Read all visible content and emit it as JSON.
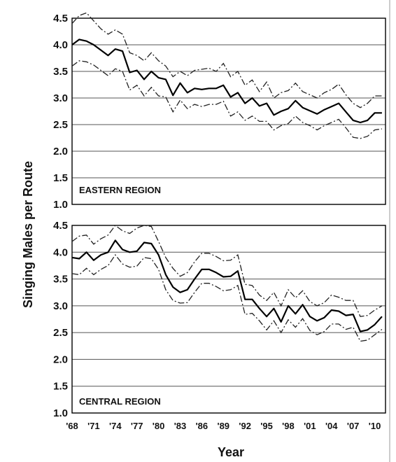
{
  "chart_data": [
    {
      "type": "line",
      "panel_label": "EASTERN REGION",
      "ylim": [
        1.0,
        4.5
      ],
      "yticks": [
        "1.0",
        "1.5",
        "2.0",
        "2.5",
        "3.0",
        "3.5",
        "4.0",
        "4.5"
      ],
      "xlim": [
        1968,
        2011.5
      ],
      "grid": true,
      "x": [
        1968,
        1969,
        1970,
        1971,
        1972,
        1973,
        1974,
        1975,
        1976,
        1977,
        1978,
        1979,
        1980,
        1981,
        1982,
        1983,
        1984,
        1985,
        1986,
        1987,
        1988,
        1989,
        1990,
        1991,
        1992,
        1993,
        1994,
        1995,
        1996,
        1997,
        1998,
        1999,
        2000,
        2001,
        2002,
        2003,
        2004,
        2005,
        2006,
        2007,
        2008,
        2009,
        2010,
        2011
      ],
      "series": [
        {
          "values": [
            4.0,
            4.1,
            4.07,
            4.0,
            3.9,
            3.8,
            3.92,
            3.88,
            3.48,
            3.52,
            3.35,
            3.5,
            3.38,
            3.35,
            3.05,
            3.28,
            3.1,
            3.18,
            3.16,
            3.18,
            3.18,
            3.24,
            3.02,
            3.1,
            2.9,
            3.0,
            2.85,
            2.9,
            2.68,
            2.75,
            2.8,
            2.95,
            2.82,
            2.76,
            2.7,
            2.78,
            2.84,
            2.9,
            2.74,
            2.58,
            2.54,
            2.58,
            2.72,
            2.72
          ]
        },
        {
          "values": [
            4.4,
            4.55,
            4.6,
            4.45,
            4.3,
            4.2,
            4.28,
            4.2,
            3.85,
            3.8,
            3.7,
            3.85,
            3.7,
            3.6,
            3.4,
            3.5,
            3.42,
            3.52,
            3.54,
            3.56,
            3.5,
            3.65,
            3.4,
            3.5,
            3.24,
            3.34,
            3.12,
            3.3,
            3.0,
            3.1,
            3.14,
            3.28,
            3.12,
            3.06,
            3.0,
            3.1,
            3.16,
            3.26,
            3.06,
            2.9,
            2.82,
            2.9,
            3.04,
            3.04
          ]
        },
        {
          "values": [
            3.6,
            3.7,
            3.68,
            3.62,
            3.52,
            3.42,
            3.55,
            3.5,
            3.15,
            3.24,
            3.04,
            3.2,
            3.04,
            3.02,
            2.74,
            2.96,
            2.8,
            2.88,
            2.84,
            2.88,
            2.88,
            2.94,
            2.66,
            2.74,
            2.58,
            2.66,
            2.56,
            2.56,
            2.4,
            2.48,
            2.52,
            2.66,
            2.54,
            2.48,
            2.4,
            2.48,
            2.54,
            2.6,
            2.44,
            2.26,
            2.24,
            2.28,
            2.4,
            2.42
          ]
        }
      ]
    },
    {
      "type": "line",
      "panel_label": "CENTRAL REGION",
      "ylim": [
        1.0,
        4.5
      ],
      "yticks": [
        "1.0",
        "1.5",
        "2.0",
        "2.5",
        "3.0",
        "3.5",
        "4.0",
        "4.5"
      ],
      "xlim": [
        1968,
        2011.5
      ],
      "grid": true,
      "x": [
        1968,
        1969,
        1970,
        1971,
        1972,
        1973,
        1974,
        1975,
        1976,
        1977,
        1978,
        1979,
        1980,
        1981,
        1982,
        1983,
        1984,
        1985,
        1986,
        1987,
        1988,
        1989,
        1990,
        1991,
        1992,
        1993,
        1994,
        1995,
        1996,
        1997,
        1998,
        1999,
        2000,
        2001,
        2002,
        2003,
        2004,
        2005,
        2006,
        2007,
        2008,
        2009,
        2010,
        2011
      ],
      "series": [
        {
          "values": [
            3.9,
            3.88,
            4.0,
            3.85,
            3.95,
            4.0,
            4.22,
            4.05,
            4.0,
            4.02,
            4.18,
            4.16,
            3.95,
            3.58,
            3.35,
            3.25,
            3.3,
            3.5,
            3.68,
            3.68,
            3.62,
            3.54,
            3.55,
            3.65,
            3.12,
            3.12,
            2.95,
            2.8,
            2.95,
            2.7,
            3.0,
            2.85,
            3.02,
            2.8,
            2.72,
            2.78,
            2.92,
            2.9,
            2.82,
            2.84,
            2.52,
            2.55,
            2.65,
            2.8
          ]
        },
        {
          "values": [
            4.2,
            4.3,
            4.32,
            4.15,
            4.25,
            4.32,
            4.5,
            4.4,
            4.35,
            4.45,
            4.5,
            4.48,
            4.2,
            3.9,
            3.7,
            3.55,
            3.62,
            3.82,
            3.98,
            3.98,
            3.92,
            3.84,
            3.85,
            3.95,
            3.4,
            3.38,
            3.2,
            3.1,
            3.25,
            3.0,
            3.3,
            3.15,
            3.28,
            3.08,
            3.0,
            3.06,
            3.2,
            3.16,
            3.1,
            3.1,
            2.8,
            2.82,
            2.92,
            3.0
          ]
        },
        {
          "values": [
            3.6,
            3.58,
            3.7,
            3.58,
            3.68,
            3.75,
            3.95,
            3.78,
            3.72,
            3.74,
            3.9,
            3.88,
            3.68,
            3.3,
            3.1,
            3.05,
            3.06,
            3.25,
            3.42,
            3.42,
            3.36,
            3.28,
            3.3,
            3.38,
            2.84,
            2.86,
            2.72,
            2.55,
            2.72,
            2.5,
            2.74,
            2.6,
            2.76,
            2.54,
            2.46,
            2.52,
            2.66,
            2.66,
            2.56,
            2.6,
            2.34,
            2.36,
            2.46,
            2.56
          ]
        }
      ]
    }
  ],
  "x_tick_labels": [
    "'68",
    "'71",
    "'74",
    "'77",
    "'80",
    "'83",
    "'86",
    "'89",
    "'92",
    "'95",
    "'98",
    "'01",
    "'04",
    "'07",
    "'10"
  ],
  "x_tick_years": [
    1968,
    1971,
    1974,
    1977,
    1980,
    1983,
    1986,
    1989,
    1992,
    1995,
    1998,
    2001,
    2004,
    2007,
    2010
  ],
  "xlabel": "Year",
  "ylabel": "Singing Males per Route"
}
